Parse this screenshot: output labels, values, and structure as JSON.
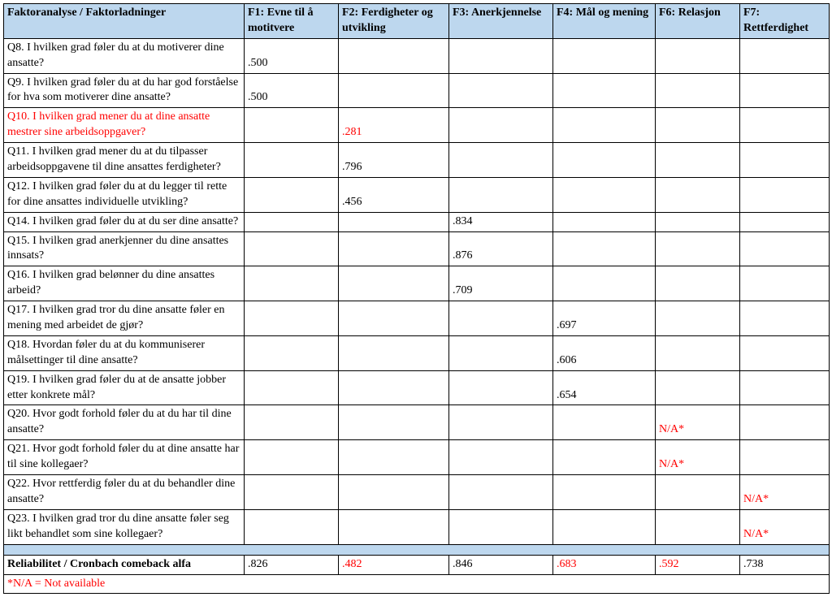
{
  "colors": {
    "header_bg": "#bdd7ee",
    "border": "#000000",
    "text": "#000000",
    "red": "#ff0000",
    "background": "#ffffff"
  },
  "typography": {
    "font_family": "Times New Roman",
    "base_font_size_pt": 11
  },
  "table": {
    "header": [
      "Faktoranalyse / Faktorladninger",
      "F1: Evne til å motitvere",
      "F2: Ferdigheter og utvikling",
      "F3: Anerkjennelse",
      "F4: Mål og mening",
      "F6: Relasjon",
      "F7: Rettferdighet"
    ],
    "rows": [
      {
        "label": "Q8. I hvilken grad føler du at du motiverer dine ansatte?",
        "red": false,
        "c1": ".500",
        "c2": "",
        "c3": "",
        "c4": "",
        "c5": "",
        "c6": "",
        "cred": [
          false,
          false,
          false,
          false,
          false,
          false
        ]
      },
      {
        "label": "Q9. I hvilken grad føler du at du har god forståelse for hva som motiverer dine ansatte?",
        "red": false,
        "c1": ".500",
        "c2": "",
        "c3": "",
        "c4": "",
        "c5": "",
        "c6": "",
        "cred": [
          false,
          false,
          false,
          false,
          false,
          false
        ]
      },
      {
        "label": "Q10. I hvilken grad mener du at dine ansatte mestrer sine arbeidsoppgaver?",
        "red": true,
        "c1": "",
        "c2": ".281",
        "c3": "",
        "c4": "",
        "c5": "",
        "c6": "",
        "cred": [
          false,
          true,
          false,
          false,
          false,
          false
        ]
      },
      {
        "label": "Q11. I hvilken grad mener du at du tilpasser arbeidsoppgavene til dine ansattes ferdigheter?",
        "red": false,
        "c1": "",
        "c2": ".796",
        "c3": "",
        "c4": "",
        "c5": "",
        "c6": "",
        "cred": [
          false,
          false,
          false,
          false,
          false,
          false
        ]
      },
      {
        "label": "Q12. I hvilken grad føler du at du legger til rette for dine ansattes individuelle utvikling?",
        "red": false,
        "c1": "",
        "c2": ".456",
        "c3": "",
        "c4": "",
        "c5": "",
        "c6": "",
        "cred": [
          false,
          false,
          false,
          false,
          false,
          false
        ]
      },
      {
        "label": "Q14. I hvilken grad føler du at du ser dine ansatte?",
        "red": false,
        "c1": "",
        "c2": "",
        "c3": ".834",
        "c4": "",
        "c5": "",
        "c6": "",
        "cred": [
          false,
          false,
          false,
          false,
          false,
          false
        ]
      },
      {
        "label": "Q15. I hvilken grad anerkjenner du dine ansattes innsats?",
        "red": false,
        "c1": "",
        "c2": "",
        "c3": ".876",
        "c4": "",
        "c5": "",
        "c6": "",
        "cred": [
          false,
          false,
          false,
          false,
          false,
          false
        ]
      },
      {
        "label": "Q16. I hvilken grad belønner du dine ansattes arbeid?",
        "red": false,
        "c1": "",
        "c2": "",
        "c3": ".709",
        "c4": "",
        "c5": "",
        "c6": "",
        "cred": [
          false,
          false,
          false,
          false,
          false,
          false
        ]
      },
      {
        "label": "Q17. I hvilken grad tror du dine ansatte føler en mening med arbeidet de gjør?",
        "red": false,
        "c1": "",
        "c2": "",
        "c3": "",
        "c4": ".697",
        "c5": "",
        "c6": "",
        "cred": [
          false,
          false,
          false,
          false,
          false,
          false
        ]
      },
      {
        "label": "Q18. Hvordan føler du at du kommuniserer målsettinger til dine ansatte?",
        "red": false,
        "c1": "",
        "c2": "",
        "c3": "",
        "c4": ".606",
        "c5": "",
        "c6": "",
        "cred": [
          false,
          false,
          false,
          false,
          false,
          false
        ]
      },
      {
        "label": "Q19. I hvilken grad føler du at de ansatte jobber etter konkrete mål?",
        "red": false,
        "c1": "",
        "c2": "",
        "c3": "",
        "c4": ".654",
        "c5": "",
        "c6": "",
        "cred": [
          false,
          false,
          false,
          false,
          false,
          false
        ]
      },
      {
        "label": "Q20. Hvor godt forhold føler du at du har til dine ansatte?",
        "red": false,
        "c1": "",
        "c2": "",
        "c3": "",
        "c4": "",
        "c5": "N/A*",
        "c6": "",
        "cred": [
          false,
          false,
          false,
          false,
          true,
          false
        ]
      },
      {
        "label": "Q21. Hvor godt forhold føler du at dine ansatte har til sine kollegaer?",
        "red": false,
        "c1": "",
        "c2": "",
        "c3": "",
        "c4": "",
        "c5": "N/A*",
        "c6": "",
        "cred": [
          false,
          false,
          false,
          false,
          true,
          false
        ]
      },
      {
        "label": "Q22. Hvor rettferdig føler du at du behandler dine ansatte?",
        "red": false,
        "c1": "",
        "c2": "",
        "c3": "",
        "c4": "",
        "c5": "",
        "c6": "N/A*",
        "cred": [
          false,
          false,
          false,
          false,
          false,
          true
        ]
      },
      {
        "label": "Q23. I hvilken grad tror du dine ansatte føler seg likt behandlet som sine kollegaer?",
        "red": false,
        "c1": "",
        "c2": "",
        "c3": "",
        "c4": "",
        "c5": "",
        "c6": "N/A*",
        "cred": [
          false,
          false,
          false,
          false,
          false,
          true
        ]
      }
    ],
    "reliability": {
      "label": "Reliabilitet / Cronbach comeback alfa",
      "values": [
        ".826",
        ".482",
        ".846",
        ".683",
        ".592",
        ".738"
      ],
      "red": [
        false,
        true,
        false,
        true,
        true,
        false
      ]
    },
    "footnote": "*N/A = Not available"
  }
}
